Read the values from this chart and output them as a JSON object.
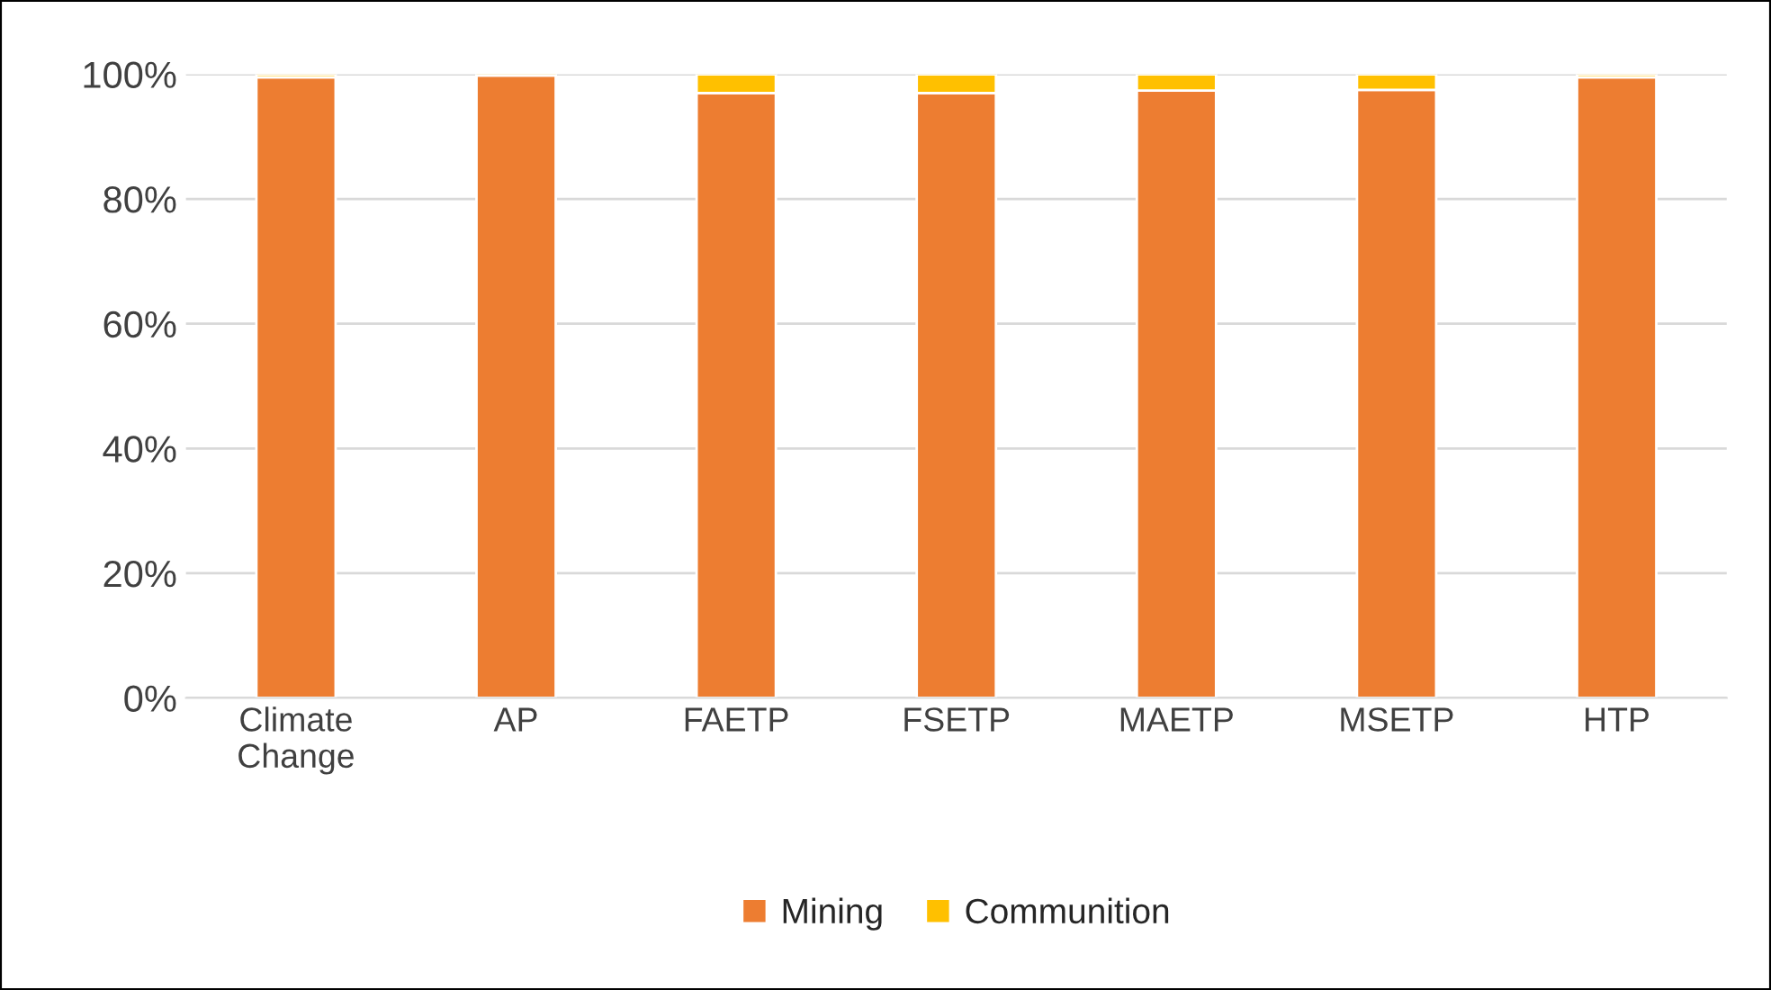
{
  "chart_data": {
    "type": "bar",
    "stacked": true,
    "categories": [
      "Climate\nChange",
      "AP",
      "FAETP",
      "FSETP",
      "MAETP",
      "MSETP",
      "HTP"
    ],
    "series": [
      {
        "name": "Mining",
        "color": "#ed7d31",
        "values": [
          99.5,
          99.8,
          97,
          97,
          97.4,
          97.5,
          99.5
        ]
      },
      {
        "name": "Communition",
        "color": "#ffc000",
        "values": [
          0.5,
          0.2,
          3,
          3,
          2.6,
          2.5,
          0.5
        ]
      }
    ],
    "ylim": [
      0,
      100
    ],
    "yticks": [
      {
        "value": 0,
        "label": "0%"
      },
      {
        "value": 20,
        "label": "20%"
      },
      {
        "value": 40,
        "label": "40%"
      },
      {
        "value": 60,
        "label": "60%"
      },
      {
        "value": 80,
        "label": "80%"
      },
      {
        "value": 100,
        "label": "100%"
      }
    ],
    "grid": "y",
    "legend": "bottom"
  }
}
